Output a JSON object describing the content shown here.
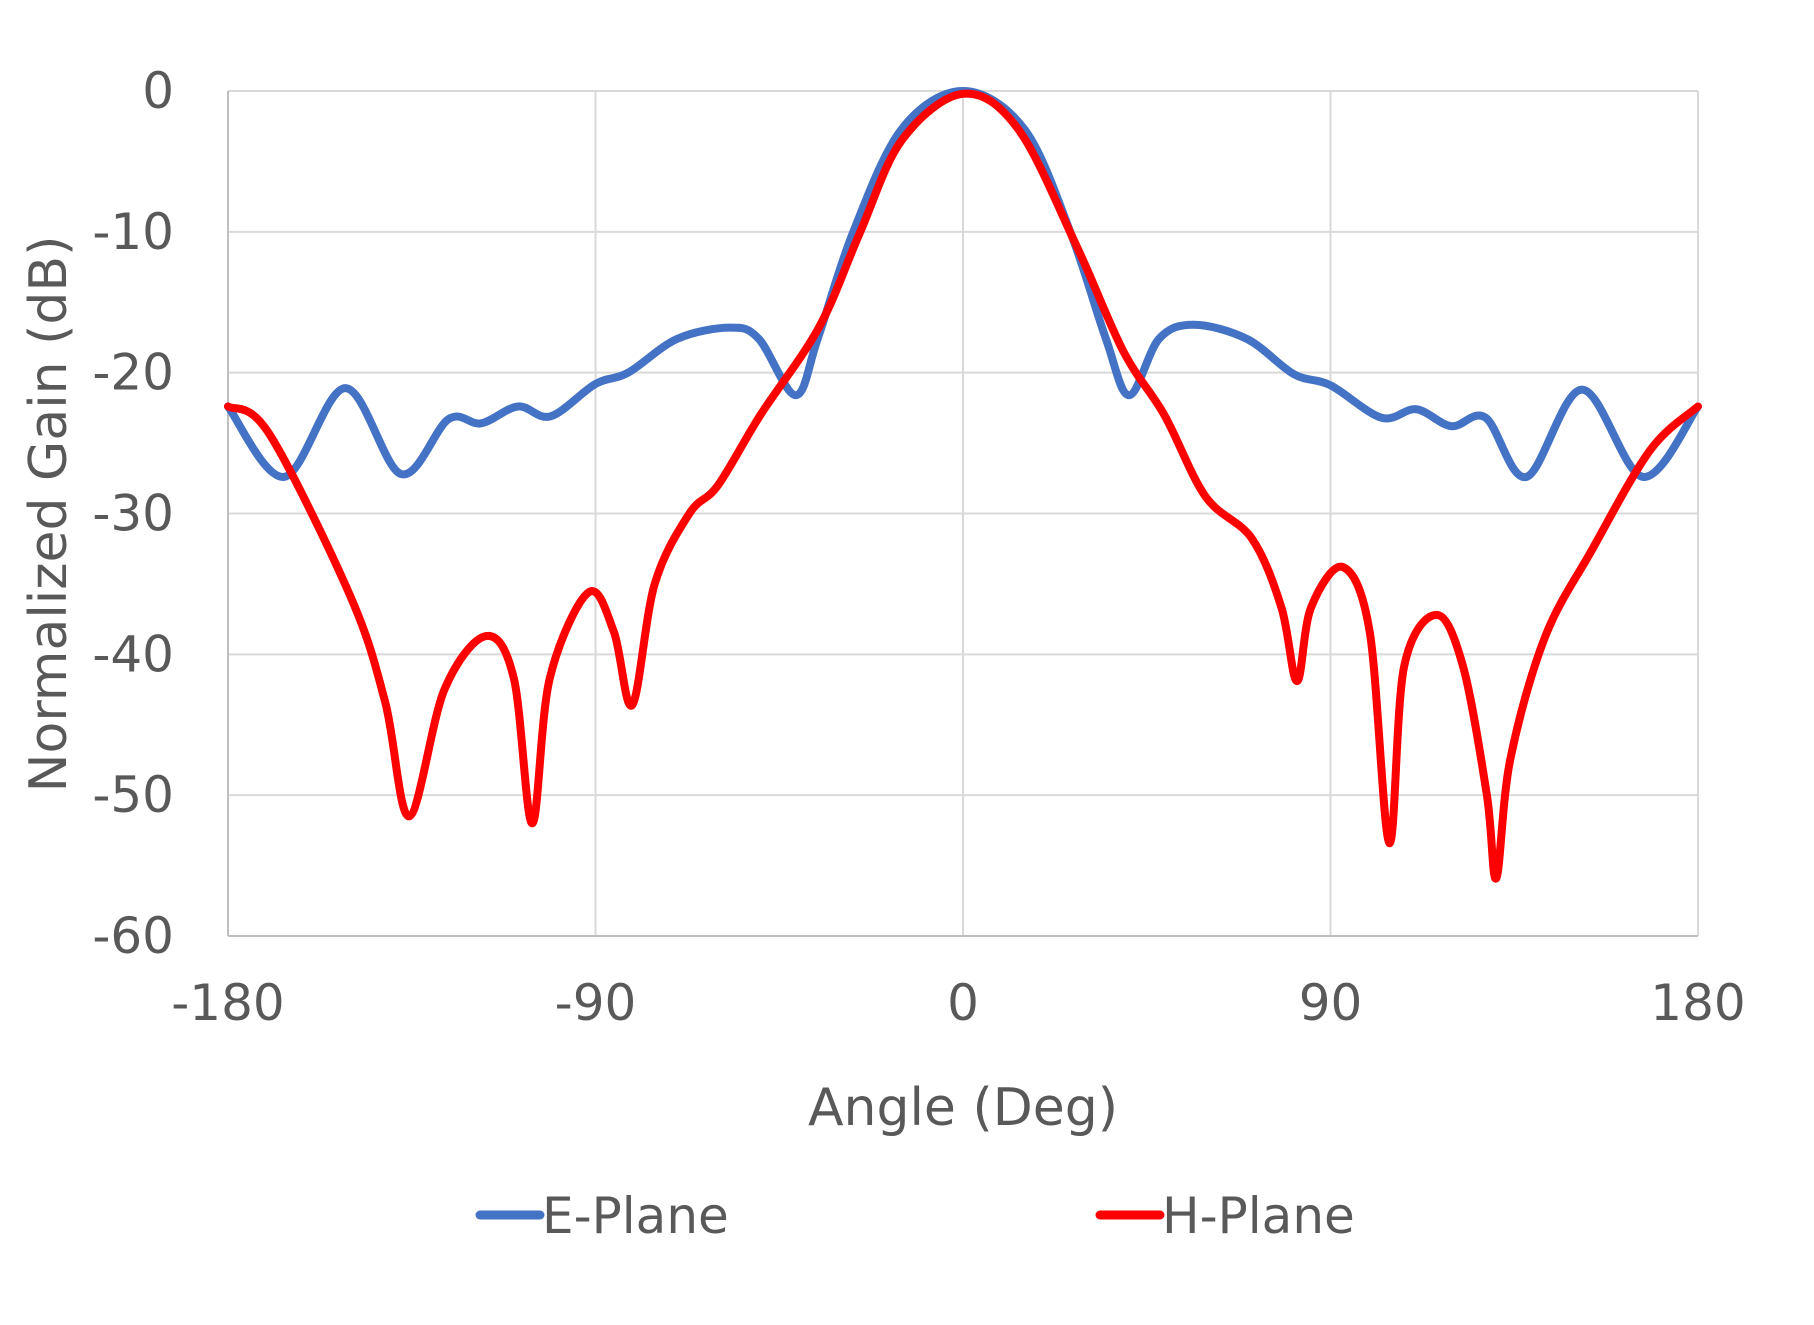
{
  "chart_data": {
    "type": "line",
    "title": "",
    "xlabel": "Angle (Deg)",
    "ylabel": "Normalized Gain (dB)",
    "xlim": [
      -180,
      180
    ],
    "ylim": [
      -60,
      0
    ],
    "xticks": [
      -180,
      -90,
      0,
      90,
      180
    ],
    "yticks": [
      0,
      -10,
      -20,
      -30,
      -40,
      -50,
      -60
    ],
    "xtick_labels": [
      "-180",
      "-90",
      "0",
      "90",
      "180"
    ],
    "ytick_labels": [
      "0",
      "-10",
      "-20",
      "-30",
      "-40",
      "-50",
      "-60"
    ],
    "grid": true,
    "legend_position": "bottom",
    "series": [
      {
        "name": "E-Plane",
        "color": "#4472C4",
        "x": [
          -180,
          -166.2,
          -151.3,
          -137.6,
          -126,
          -118,
          -109,
          -101,
          -90,
          -82,
          -70,
          -57,
          -50,
          -41,
          -35.6,
          -27,
          -15,
          0,
          15,
          26.4,
          35,
          40.7,
          48,
          56.5,
          69.5,
          81,
          90,
          102.5,
          111,
          119.6,
          128,
          138,
          151.6,
          166.5,
          180
        ],
        "y": [
          -22.4,
          -27.4,
          -21.1,
          -27.2,
          -23.3,
          -23.6,
          -22.4,
          -23.1,
          -20.8,
          -20,
          -17.6,
          -16.8,
          -17.6,
          -21.6,
          -17.6,
          -10.1,
          -2.7,
          0,
          -2.7,
          -10.1,
          -17.6,
          -21.6,
          -17.6,
          -16.6,
          -17.6,
          -20.1,
          -20.9,
          -23.2,
          -22.6,
          -23.8,
          -23.2,
          -27.4,
          -21.2,
          -27.4,
          -22.4
        ]
      },
      {
        "name": "H-Plane",
        "color": "#FF0000",
        "x": [
          -180,
          -170,
          -150,
          -141.5,
          -135.6,
          -127,
          -116.8,
          -110,
          -105.5,
          -101.2,
          -91.7,
          -85.5,
          -81,
          -75.5,
          -67,
          -60,
          -49.6,
          -35.3,
          -25.3,
          -15,
          0,
          13.5,
          27.8,
          39.3,
          49.3,
          59.4,
          70.8,
          78,
          81.8,
          85.2,
          93,
          99.6,
          104.4,
          108,
          116,
          122.5,
          128.3,
          130.6,
          134,
          142.5,
          154,
          168.3,
          180
        ],
        "y": [
          -22.4,
          -24.3,
          -35.9,
          -43.4,
          -51.5,
          -42.5,
          -38.7,
          -41.7,
          -52,
          -41.7,
          -35.6,
          -38.4,
          -43.6,
          -35,
          -30,
          -28,
          -23,
          -16.8,
          -10.1,
          -3.5,
          -0.2,
          -2.7,
          -11,
          -18.5,
          -23,
          -28.8,
          -31.8,
          -36.7,
          -41.9,
          -36.7,
          -33.8,
          -38.4,
          -53.4,
          -40.9,
          -37.2,
          -40.9,
          -50,
          -55.9,
          -47.5,
          -38.8,
          -32.6,
          -25.5,
          -22.4
        ]
      }
    ]
  }
}
